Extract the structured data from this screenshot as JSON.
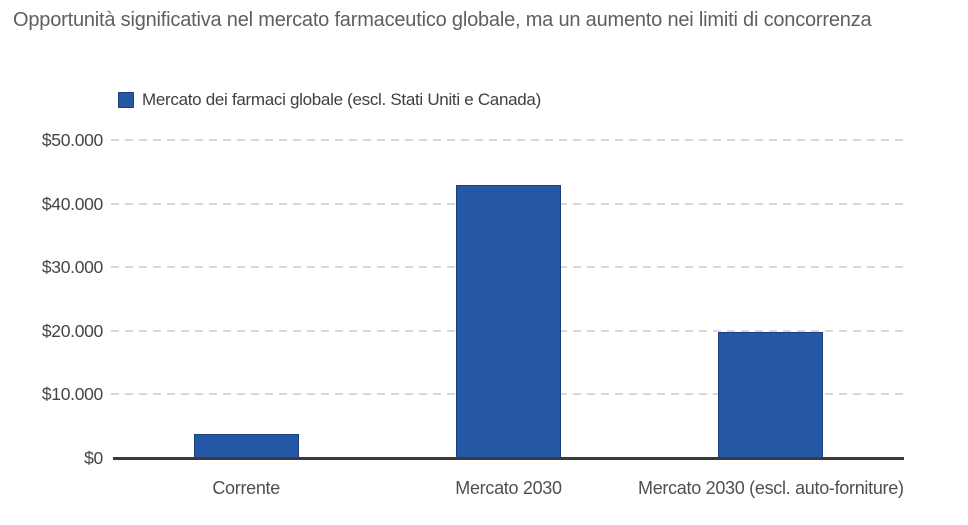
{
  "title": "Opportunità significativa nel mercato farmaceutico globale, ma un aumento nei limiti di concorrenza",
  "legend": {
    "label": "Mercato dei farmaci globale (escl. Stati Uniti e Canada)"
  },
  "chart_data": {
    "type": "bar",
    "title": "Opportunità significativa nel mercato farmaceutico globale, ma un aumento nei limiti di concorrenza",
    "categories": [
      "Corrente",
      "Mercato 2030",
      "Mercato 2030 (escl. auto-forniture)"
    ],
    "series": [
      {
        "name": "Mercato dei farmaci globale (escl. Stati Uniti e Canada)",
        "values": [
          3700,
          43000,
          19800
        ]
      }
    ],
    "values": [
      3700,
      43000,
      19800
    ],
    "xlabel": "",
    "ylabel": "",
    "ylim": [
      0,
      50000
    ],
    "yticks": [
      {
        "value": 0,
        "label": "$0"
      },
      {
        "value": 10000,
        "label": "$10.000"
      },
      {
        "value": 20000,
        "label": "$20.000"
      },
      {
        "value": 30000,
        "label": "$30.000"
      },
      {
        "value": 40000,
        "label": "$40.000"
      },
      {
        "value": 50000,
        "label": "$50.000"
      }
    ],
    "grid": "horizontal-dashed",
    "legend_position": "top-left",
    "colors": {
      "bar": "#2457A6",
      "bar_border": "#1C3F7A",
      "grid": "#D8D8D8",
      "axis": "#3A3A3A",
      "title_text": "#5F5F5F",
      "tick_text": "#454545"
    }
  }
}
